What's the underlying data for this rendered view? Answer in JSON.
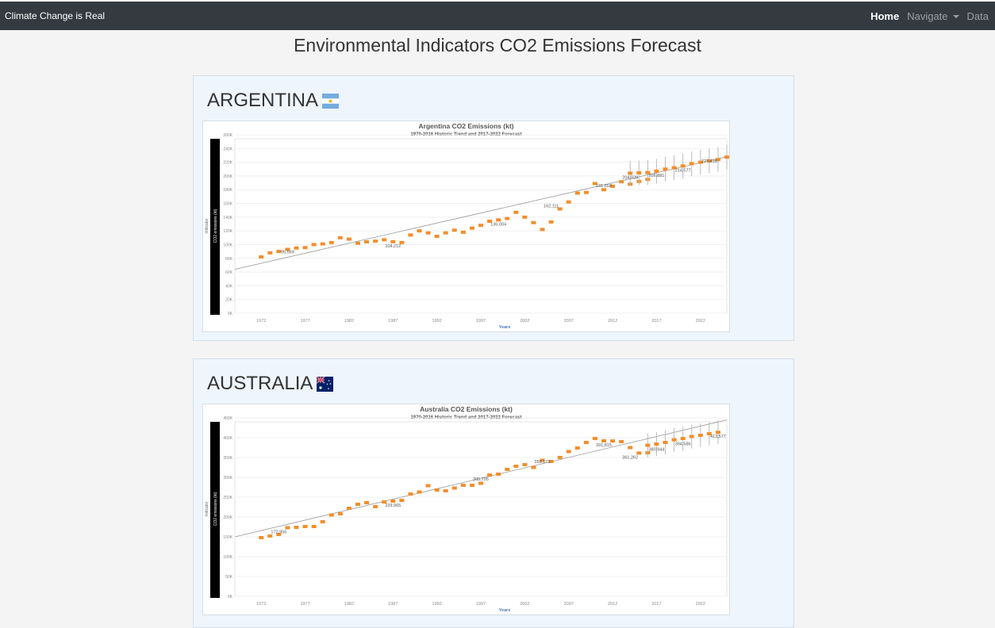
{
  "navbar": {
    "brand": "Climate Change is Real",
    "links": {
      "home": "Home",
      "navigate": "Navigate",
      "data": "Data"
    }
  },
  "page": {
    "title": "Environmental Indicators CO2 Emissions Forecast"
  },
  "countries": [
    {
      "name": "ARGENTINA",
      "flag": "argentina-flag"
    },
    {
      "name": "AUSTRALIA",
      "flag": "australia-flag"
    }
  ],
  "chart_data": [
    {
      "type": "scatter",
      "title": "Argentina CO2 Emissions (kt)",
      "subtitle": "1970-2016 Historic Trend and 2017-2022 Forecast",
      "xlabel": "Years",
      "ylabel": "Indicator",
      "ylabel2": "CO2 emissions (kt)",
      "xlim": [
        1969,
        2025
      ],
      "ylim": [
        0,
        260000
      ],
      "xticks": [
        "1972",
        "1977",
        "1982",
        "1987",
        "1992",
        "1997",
        "2002",
        "2007",
        "2012",
        "2017",
        "2022"
      ],
      "yticks": [
        "0K",
        "20K",
        "40K",
        "60K",
        "80K",
        "100K",
        "120K",
        "140K",
        "160K",
        "180K",
        "200K",
        "220K",
        "240K",
        "260K"
      ],
      "series": [
        {
          "x": [
            1972,
            1973,
            1974,
            1975,
            1976,
            1977,
            1978,
            1979,
            1980,
            1981,
            1982,
            1983,
            1984,
            1985,
            1986,
            1987,
            1988,
            1989,
            1990,
            1991,
            1992,
            1993,
            1994,
            1995,
            1996,
            1997,
            1998,
            1999,
            2000,
            2001,
            2002,
            2003,
            2004,
            2005,
            2006,
            2007,
            2008,
            2009,
            2010,
            2011,
            2012,
            2013,
            2014,
            2015,
            2016
          ],
          "y": [
            82000,
            88000,
            90000,
            93000,
            95000,
            95569,
            100000,
            101000,
            103000,
            110000,
            108000,
            102000,
            104000,
            105000,
            107000,
            104212,
            103000,
            114000,
            120000,
            117000,
            112000,
            117000,
            121000,
            118000,
            124000,
            128000,
            134000,
            136004,
            138000,
            147000,
            140000,
            132000,
            122000,
            133000,
            152000,
            162111,
            175000,
            176000,
            189000,
            180000,
            185000,
            191658,
            188000,
            192000,
            195000
          ]
        },
        {
          "x": [
            2014,
            2015,
            2016,
            2017,
            2018,
            2019,
            2020,
            2021,
            2022,
            2023,
            2024,
            2025
          ],
          "y": [
            204028,
            204500,
            205000,
            206881,
            210000,
            212000,
            214577,
            218000,
            220000,
            222000,
            224000,
            227498
          ],
          "error": 18000
        }
      ],
      "trend": {
        "x": [
          1969,
          2025
        ],
        "y": [
          64000,
          228000
        ]
      },
      "annotations": [
        {
          "x": 1975,
          "y": 95569,
          "text": "95,569"
        },
        {
          "x": 1987,
          "y": 104212,
          "text": "104,212"
        },
        {
          "x": 1999,
          "y": 136004,
          "text": "136,004"
        },
        {
          "x": 2005,
          "y": 162111,
          "text": "162,111"
        },
        {
          "x": 2011,
          "y": 191658,
          "text": "191,658"
        },
        {
          "x": 2014,
          "y": 204028,
          "text": "204,028"
        },
        {
          "x": 2017,
          "y": 206881,
          "text": "206,881"
        },
        {
          "x": 2020,
          "y": 214577,
          "text": "214,577"
        },
        {
          "x": 2023,
          "y": 227498,
          "text": "227,498"
        }
      ],
      "point_color": "#f28e2b",
      "grid": true
    },
    {
      "type": "scatter",
      "title": "Australia CO2 Emissions (kt)",
      "subtitle": "1970-2016 Historic Trend and 2017-2022 Forecast",
      "xlabel": "Years",
      "ylabel": "Indicator",
      "ylabel2": "CO2 emissions (kt)",
      "xlim": [
        1969,
        2025
      ],
      "ylim": [
        0,
        450000
      ],
      "xticks": [
        "1972",
        "1977",
        "1982",
        "1987",
        "1992",
        "1997",
        "2002",
        "2007",
        "2012",
        "2017",
        "2022"
      ],
      "yticks": [
        "0K",
        "50K",
        "100K",
        "150K",
        "200K",
        "250K",
        "300K",
        "350K",
        "400K",
        "450K"
      ],
      "series": [
        {
          "x": [
            1972,
            1973,
            1974,
            1975,
            1976,
            1977,
            1978,
            1979,
            1980,
            1981,
            1982,
            1983,
            1984,
            1985,
            1986,
            1987,
            1988,
            1989,
            1990,
            1991,
            1992,
            1993,
            1994,
            1995,
            1996,
            1997,
            1998,
            1999,
            2000,
            2001,
            2002,
            2003,
            2004,
            2005,
            2006,
            2007,
            2008,
            2009,
            2010,
            2011,
            2012,
            2013,
            2014,
            2015,
            2016
          ],
          "y": [
            148000,
            152000,
            156000,
            172956,
            174000,
            176000,
            176000,
            188000,
            205000,
            208000,
            222000,
            232000,
            236000,
            226000,
            238000,
            239965,
            242000,
            258000,
            263000,
            279000,
            268000,
            266000,
            273000,
            280000,
            280000,
            285000,
            305795,
            308000,
            320000,
            328000,
            332000,
            325000,
            343000,
            340000,
            350173,
            365000,
            374000,
            388000,
            398000,
            392000,
            391815,
            390000,
            375000,
            361262,
            362000
          ]
        },
        {
          "x": [
            2016,
            2017,
            2018,
            2019,
            2020,
            2021,
            2022,
            2023,
            2024
          ],
          "y": [
            380944,
            384000,
            388000,
            394586,
            398000,
            403000,
            406000,
            410000,
            413577
          ],
          "error": 30000
        }
      ],
      "trend": {
        "x": [
          1969,
          2025
        ],
        "y": [
          150000,
          445000
        ]
      },
      "annotations": [
        {
          "x": 1974,
          "y": 172956,
          "text": "172,956"
        },
        {
          "x": 1987,
          "y": 239965,
          "text": "239,965"
        },
        {
          "x": 1997,
          "y": 305795,
          "text": "305,795"
        },
        {
          "x": 2004,
          "y": 350173,
          "text": "350,173"
        },
        {
          "x": 2011,
          "y": 391815,
          "text": "391,815"
        },
        {
          "x": 2014,
          "y": 361262,
          "text": "361,262"
        },
        {
          "x": 2017,
          "y": 380944,
          "text": "380,944"
        },
        {
          "x": 2020,
          "y": 394586,
          "text": "394,586"
        },
        {
          "x": 2024,
          "y": 413577,
          "text": "413,577"
        }
      ],
      "point_color": "#f28e2b",
      "grid": true
    }
  ]
}
